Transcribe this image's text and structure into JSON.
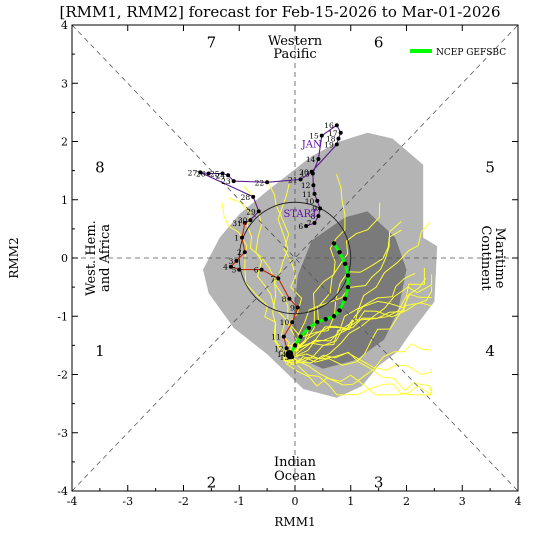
{
  "chart_data": {
    "type": "line",
    "title": "[RMM1, RMM2] forecast for Feb-15-2026 to Mar-01-2026",
    "xlabel": "RMM1",
    "ylabel": "RMM2",
    "xlim": [
      -4,
      4
    ],
    "ylim": [
      -4,
      4
    ],
    "xticks": [
      "-4",
      "-3",
      "-2",
      "-1",
      "0",
      "1",
      "2",
      "3",
      "4"
    ],
    "yticks": [
      "-4",
      "-3",
      "-2",
      "-1",
      "0",
      "1",
      "2",
      "3",
      "4"
    ],
    "grid": false,
    "legend": {
      "position": "top-right",
      "entries": [
        {
          "label": "NCEP GEFSBC",
          "color": "#00ff00"
        }
      ]
    },
    "phase_numbers": [
      {
        "label": "1",
        "x": -3.5,
        "y": -1.6
      },
      {
        "label": "2",
        "x": -1.5,
        "y": -3.85
      },
      {
        "label": "3",
        "x": 1.5,
        "y": -3.85
      },
      {
        "label": "4",
        "x": 3.5,
        "y": -1.6
      },
      {
        "label": "5",
        "x": 3.5,
        "y": 1.55
      },
      {
        "label": "6",
        "x": 1.5,
        "y": 3.7
      },
      {
        "label": "7",
        "x": -1.5,
        "y": 3.7
      },
      {
        "label": "8",
        "x": -3.5,
        "y": 1.55
      }
    ],
    "region_labels": {
      "top": [
        "Western",
        "Pacific"
      ],
      "bottom": [
        "Indian",
        "Ocean"
      ],
      "left": [
        "West. Hem.",
        "and Africa"
      ],
      "right": [
        "Maritime",
        "Continent"
      ]
    },
    "month_labels": [
      {
        "label": "JAN",
        "x": 0.3,
        "y": 1.9,
        "color": "#6a0dad"
      },
      {
        "label": "START",
        "x": 0.1,
        "y": 0.7,
        "color": "#6a0dad"
      }
    ],
    "colors": {
      "observed_jan": "#5b1a8c",
      "observed_feb": "#cc2200",
      "ensemble": "#ffff33",
      "ensemble_mean": "#00ff00",
      "envelope_outer": "#b4b4b4",
      "envelope_inner": "#7a7a7a"
    },
    "observed_jan": [
      {
        "day": "6",
        "x": 0.2,
        "y": 0.55
      },
      {
        "day": "7",
        "x": 0.35,
        "y": 0.6
      },
      {
        "day": "8",
        "x": 0.42,
        "y": 0.72
      },
      {
        "day": "9",
        "x": 0.45,
        "y": 0.85
      },
      {
        "day": "10",
        "x": 0.4,
        "y": 0.98
      },
      {
        "day": "11",
        "x": 0.35,
        "y": 1.1
      },
      {
        "day": "12",
        "x": 0.33,
        "y": 1.25
      },
      {
        "day": "13",
        "x": 0.32,
        "y": 1.45
      },
      {
        "day": "14",
        "x": 0.42,
        "y": 1.7
      },
      {
        "day": "15",
        "x": 0.48,
        "y": 2.1
      },
      {
        "day": "16",
        "x": 0.75,
        "y": 2.28
      },
      {
        "day": "17",
        "x": 0.82,
        "y": 2.15
      },
      {
        "day": "18",
        "x": 0.78,
        "y": 2.05
      },
      {
        "day": "19",
        "x": 0.75,
        "y": 1.95
      },
      {
        "day": "20",
        "x": 0.3,
        "y": 1.48
      },
      {
        "day": "21",
        "x": 0.1,
        "y": 1.35
      },
      {
        "day": "22",
        "x": -0.5,
        "y": 1.3
      },
      {
        "day": "23",
        "x": -1.1,
        "y": 1.32
      },
      {
        "day": "24",
        "x": -1.2,
        "y": 1.42
      },
      {
        "day": "25",
        "x": -1.3,
        "y": 1.45
      },
      {
        "day": "26",
        "x": -1.55,
        "y": 1.45
      },
      {
        "day": "27",
        "x": -1.7,
        "y": 1.47
      },
      {
        "day": "28",
        "x": -0.75,
        "y": 1.05
      },
      {
        "day": "29",
        "x": -0.65,
        "y": 0.8
      },
      {
        "day": "30",
        "x": -0.8,
        "y": 0.65
      },
      {
        "day": "31",
        "x": -0.9,
        "y": 0.6
      }
    ],
    "observed_feb": [
      {
        "day": "1",
        "x": -0.95,
        "y": 0.35
      },
      {
        "day": "2",
        "x": -0.9,
        "y": 0.1
      },
      {
        "day": "3",
        "x": -1.05,
        "y": -0.05
      },
      {
        "day": "4",
        "x": -1.15,
        "y": -0.15
      },
      {
        "day": "5",
        "x": -1.0,
        "y": -0.2
      },
      {
        "day": "6",
        "x": -0.6,
        "y": -0.2
      },
      {
        "day": "7",
        "x": -0.3,
        "y": -0.35
      },
      {
        "day": "8",
        "x": -0.1,
        "y": -0.7
      },
      {
        "day": "9",
        "x": 0.05,
        "y": -0.85
      },
      {
        "day": "10",
        "x": -0.05,
        "y": -1.1
      },
      {
        "day": "11",
        "x": -0.2,
        "y": -1.35
      },
      {
        "day": "12",
        "x": -0.15,
        "y": -1.55
      },
      {
        "day": "13",
        "x": -0.05,
        "y": -1.7
      },
      {
        "day": "14",
        "x": -0.1,
        "y": -1.65
      }
    ],
    "series": [
      {
        "name": "NCEP GEFSBC",
        "x": [
          -0.1,
          0.0,
          0.1,
          0.25,
          0.4,
          0.55,
          0.7,
          0.8,
          0.9,
          0.95,
          0.95,
          0.9,
          0.8,
          0.7
        ],
        "y": [
          -1.7,
          -1.5,
          -1.35,
          -1.2,
          -1.1,
          -1.05,
          -1.0,
          -0.9,
          -0.7,
          -0.5,
          -0.3,
          -0.1,
          0.1,
          0.25
        ]
      }
    ]
  }
}
